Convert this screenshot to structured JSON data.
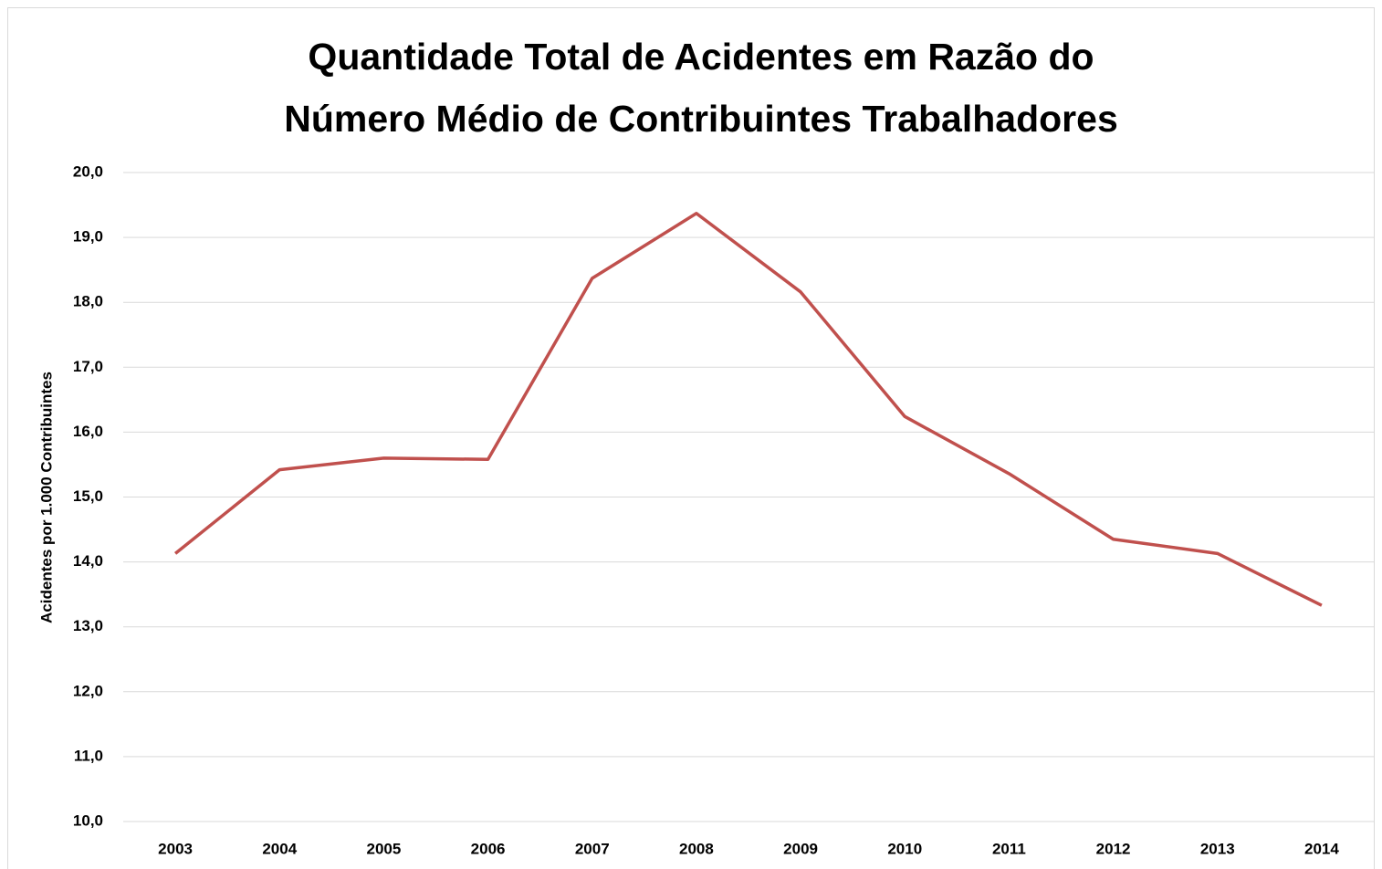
{
  "chart_data": {
    "type": "line",
    "title": [
      "Quantidade Total de Acidentes em Razão do",
      "Número Médio de Contribuintes Trabalhadores"
    ],
    "ylabel": "Acidentes por 1.000 Contribuintes",
    "categories": [
      "2003",
      "2004",
      "2005",
      "2006",
      "2007",
      "2008",
      "2009",
      "2010",
      "2011",
      "2012",
      "2013",
      "2014"
    ],
    "series": [
      {
        "name": "Acidentes",
        "color": "#c0504d",
        "values": [
          14.13,
          15.42,
          15.6,
          15.58,
          18.37,
          19.37,
          18.16,
          16.24,
          15.36,
          14.35,
          14.13,
          13.33
        ]
      }
    ],
    "ylim": [
      10,
      20
    ],
    "yticks": [
      {
        "value": 10,
        "label": "10,0"
      },
      {
        "value": 11,
        "label": "11,0"
      },
      {
        "value": 12,
        "label": "12,0"
      },
      {
        "value": 13,
        "label": "13,0"
      },
      {
        "value": 14,
        "label": "14,0"
      },
      {
        "value": 15,
        "label": "15,0"
      },
      {
        "value": 16,
        "label": "16,0"
      },
      {
        "value": 17,
        "label": "17,0"
      },
      {
        "value": 18,
        "label": "18,0"
      },
      {
        "value": 19,
        "label": "19,0"
      },
      {
        "value": 20,
        "label": "20,0"
      }
    ],
    "grid": true
  }
}
